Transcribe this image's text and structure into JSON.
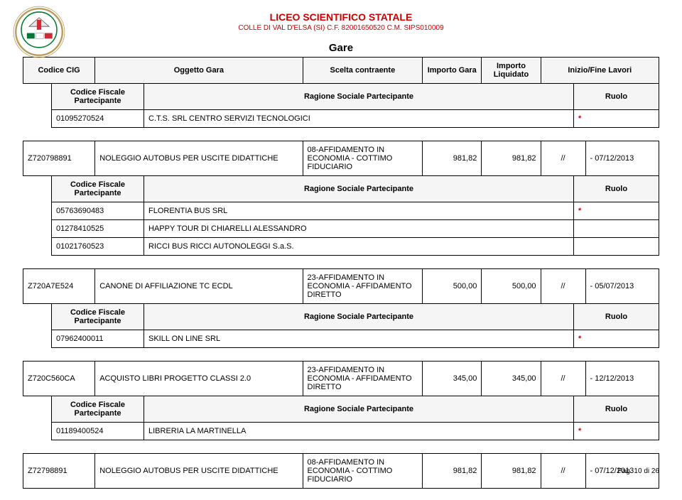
{
  "header": {
    "org": "LICEO SCIENTIFICO STATALE",
    "sub": "COLLE DI VAL D'ELSA (SI) C.F. 82001650520 C.M. SIPS010009",
    "page_title": "Gare"
  },
  "columns": {
    "cig": "Codice CIG",
    "oggetto": "Oggetto Gara",
    "scelta": "Scelta contraente",
    "importo_gara": "Importo Gara",
    "importo_liq": "Importo Liquidato",
    "inizio_fine": "Inizio/Fine Lavori"
  },
  "sub_columns": {
    "cf": "Codice Fiscale Partecipante",
    "rs": "Ragione Sociale Partecipante",
    "ruolo": "Ruolo"
  },
  "top_row": {
    "cf": "01095270524",
    "rs": "C.T.S. SRL CENTRO SERVIZI TECNOLOGICI",
    "star": "*"
  },
  "gare": [
    {
      "cig": "Z720798891",
      "oggetto": "NOLEGGIO AUTOBUS PER USCITE DIDATTICHE",
      "scelta": "08-AFFIDAMENTO IN ECONOMIA - COTTIMO FIDUCIARIO",
      "imp_gara": "981,82",
      "imp_liq": "981,82",
      "date_a": "//",
      "date_b": "- 07/12/2013",
      "rows": [
        {
          "cf": "05763690483",
          "rs": "FLORENTIA BUS SRL",
          "ruolo": "*",
          "star": true
        },
        {
          "cf": "01278410525",
          "rs": "HAPPY TOUR DI CHIARELLI ALESSANDRO",
          "ruolo": "",
          "star": false
        },
        {
          "cf": "01021760523",
          "rs": "RICCI BUS RICCI AUTONOLEGGI S.a.S.",
          "ruolo": "",
          "star": false
        }
      ]
    },
    {
      "cig": "Z720A7E524",
      "oggetto": "CANONE DI AFFILIAZIONE TC ECDL",
      "scelta": "23-AFFIDAMENTO IN ECONOMIA - AFFIDAMENTO DIRETTO",
      "imp_gara": "500,00",
      "imp_liq": "500,00",
      "date_a": "//",
      "date_b": "- 05/07/2013",
      "rows": [
        {
          "cf": "07962400011",
          "rs": "SKILL ON LINE SRL",
          "ruolo": "*",
          "star": true
        }
      ]
    },
    {
      "cig": "Z720C560CA",
      "oggetto": "ACQUISTO LIBRI PROGETTO CLASSI 2.0",
      "scelta": "23-AFFIDAMENTO IN ECONOMIA - AFFIDAMENTO DIRETTO",
      "imp_gara": "345,00",
      "imp_liq": "345,00",
      "date_a": "//",
      "date_b": "- 12/12/2013",
      "rows": [
        {
          "cf": "01189400524",
          "rs": "LIBRERIA LA MARTINELLA",
          "ruolo": "*",
          "star": true
        }
      ]
    },
    {
      "cig": "Z72798891",
      "oggetto": "NOLEGGIO AUTOBUS PER USCITE DIDATTICHE",
      "scelta": "08-AFFIDAMENTO IN ECONOMIA - COTTIMO FIDUCIARIO",
      "imp_gara": "981,82",
      "imp_liq": "981,82",
      "date_a": "//",
      "date_b": "- 07/12/2013",
      "rows": []
    }
  ],
  "footer": "Pag. 10 di 26",
  "colors": {
    "accent": "#c00",
    "border": "#000",
    "th_bg": "#f5f5f5"
  }
}
